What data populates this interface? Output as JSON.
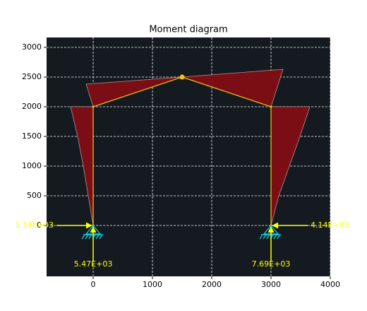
{
  "chart_data": {
    "type": "moment-diagram",
    "title": "Moment diagram",
    "xlim": [
      -786,
      4000
    ],
    "ylim": [
      -857,
      3167
    ],
    "xticks": [
      0,
      1000,
      2000,
      3000,
      4000
    ],
    "yticks": [
      0,
      500,
      1000,
      1500,
      2000,
      2500,
      3000
    ],
    "grid": true,
    "background": "#141a20",
    "moment_color": "#7b0d15",
    "member_color": "#f5c518",
    "support_color": "#00d8f0",
    "reaction_color": "#ffff00",
    "members": {
      "x": [
        0,
        0,
        1500,
        3000,
        3000
      ],
      "y": [
        0,
        2000,
        2500,
        2000,
        0
      ]
    },
    "hinge": {
      "x": 1500,
      "y": 2500
    },
    "moments": [
      {
        "x": [
          0,
          -83,
          -167,
          -262,
          -381,
          0
        ],
        "y": [
          0,
          500,
          1000,
          1500,
          2000,
          2000
        ]
      },
      {
        "x": [
          0,
          -119,
          1500
        ],
        "y": [
          2000,
          2381,
          2500
        ]
      },
      {
        "x": [
          1500,
          3202,
          3000
        ],
        "y": [
          2500,
          2631,
          2000
        ]
      },
      {
        "x": [
          3000,
          3655,
          3488,
          3310,
          3131,
          3000
        ],
        "y": [
          2000,
          2000,
          1500,
          1000,
          500,
          0
        ]
      }
    ],
    "supports": [
      {
        "x": 0,
        "y": 0
      },
      {
        "x": 3000,
        "y": 0
      }
    ],
    "reactions": [
      {
        "x": 0,
        "y": 0,
        "direction": "right",
        "label": "1.14E+03"
      },
      {
        "x": 0,
        "y": 0,
        "direction": "up",
        "label": "5.47E+03"
      },
      {
        "x": 3000,
        "y": 0,
        "direction": "left",
        "label": "4.14E+03"
      },
      {
        "x": 3000,
        "y": 0,
        "direction": "up",
        "label": "7.69E+03"
      }
    ]
  }
}
